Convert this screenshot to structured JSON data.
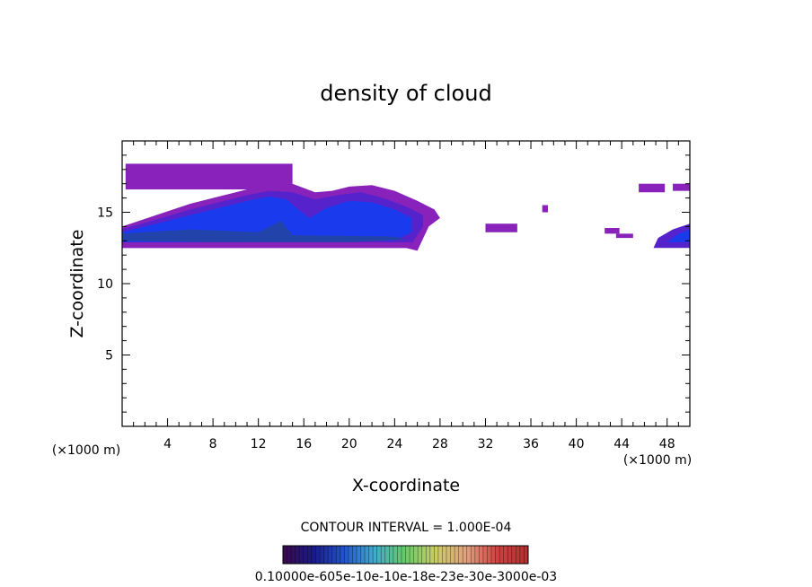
{
  "chart_data": {
    "type": "heatmap",
    "title": "density of cloud",
    "xlabel": "X-coordinate",
    "ylabel": "Z-coordinate",
    "x_unit": "(×1000 m)",
    "x_unit_right": "(×1000 m)",
    "xlim": [
      0,
      50
    ],
    "ylim": [
      0,
      20
    ],
    "x_ticks": [
      4,
      8,
      12,
      16,
      20,
      24,
      28,
      32,
      36,
      40,
      44,
      48
    ],
    "y_ticks": [
      5,
      10,
      15
    ],
    "contour_interval_text": "CONTOUR INTERVAL = 1.000E-04",
    "colorbar_labels_text": "0.10000e-605e-10e-10e-18e-23e-30e-3000e-03",
    "colorbar_colors": [
      "#3a0a4a",
      "#1a1a8a",
      "#2255cc",
      "#44aacc",
      "#66cc66",
      "#cccc66",
      "#e0a080",
      "#d04040",
      "#b03030"
    ],
    "cloud_colors": {
      "edge": "#8822bb",
      "mid": "#5522cc",
      "core": "#1a3aee",
      "dense": "#2244aa"
    },
    "regions": [
      {
        "kind": "band",
        "x": [
          0.3,
          15.0
        ],
        "z": [
          16.6,
          18.4
        ],
        "color": "edge"
      },
      {
        "kind": "band",
        "x": [
          8.0,
          13.5
        ],
        "z": [
          17.0,
          18.2
        ],
        "color": "edge"
      },
      {
        "kind": "main",
        "color": "edge"
      },
      {
        "kind": "blob",
        "x": [
          32.0,
          34.8
        ],
        "z": [
          13.6,
          14.2
        ],
        "color": "edge"
      },
      {
        "kind": "blob",
        "x": [
          37.0,
          37.5
        ],
        "z": [
          15.0,
          15.5
        ],
        "color": "edge"
      },
      {
        "kind": "blob",
        "x": [
          42.5,
          43.8
        ],
        "z": [
          13.5,
          13.9
        ],
        "color": "edge"
      },
      {
        "kind": "blob",
        "x": [
          43.5,
          45.0
        ],
        "z": [
          13.2,
          13.5
        ],
        "color": "edge"
      },
      {
        "kind": "blob",
        "x": [
          45.5,
          47.8
        ],
        "z": [
          16.4,
          17.0
        ],
        "color": "edge"
      },
      {
        "kind": "blob",
        "x": [
          48.5,
          50.0
        ],
        "z": [
          16.5,
          17.0
        ],
        "color": "edge"
      },
      {
        "kind": "right",
        "x": [
          46.8,
          50.0
        ],
        "z": [
          12.5,
          14.2
        ],
        "color": "mid"
      }
    ]
  }
}
